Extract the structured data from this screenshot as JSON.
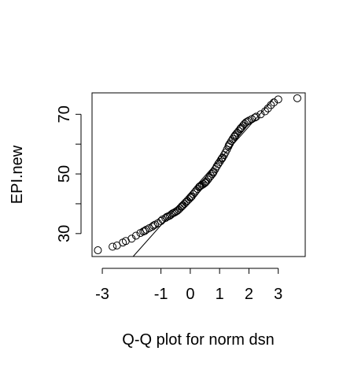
{
  "chart_data": {
    "type": "scatter",
    "title": "",
    "xlabel": "Q-Q plot for norm dsn",
    "ylabel": "EPI.new",
    "xlim": [
      -3.35,
      3.92
    ],
    "ylim": [
      22.3,
      77.2
    ],
    "xticks": [
      -3,
      -1,
      0,
      1,
      2,
      3
    ],
    "xtick_labels": [
      "-3",
      "-1",
      "0",
      "1",
      "2",
      "3"
    ],
    "yticks": [
      30,
      40,
      50,
      60,
      70
    ],
    "ytick_labels": [
      "30",
      "",
      "50",
      "",
      "70"
    ],
    "grid": false,
    "legend": "none",
    "reference_line": {
      "x": [
        -1.95,
        2.85
      ],
      "y": [
        22.3,
        75.3
      ]
    },
    "points": [
      [
        -3.15,
        24.4
      ],
      [
        -2.65,
        25.6
      ],
      [
        -2.5,
        26.0
      ],
      [
        -2.3,
        27.0
      ],
      [
        -2.2,
        27.5
      ],
      [
        -2.0,
        28.3
      ],
      [
        -1.85,
        29.3
      ],
      [
        -1.7,
        30.2
      ],
      [
        -1.6,
        30.7
      ],
      [
        -1.5,
        31.3
      ],
      [
        -1.4,
        31.8
      ],
      [
        -1.3,
        32.3
      ],
      [
        -1.2,
        33.0
      ],
      [
        -1.1,
        33.5
      ],
      [
        -1.0,
        34.2
      ],
      [
        -0.95,
        34.7
      ],
      [
        -0.85,
        35.2
      ],
      [
        -0.8,
        35.6
      ],
      [
        -0.7,
        36.0
      ],
      [
        -0.65,
        36.4
      ],
      [
        -0.6,
        36.8
      ],
      [
        -0.5,
        37.3
      ],
      [
        -0.45,
        37.6
      ],
      [
        -0.4,
        38.0
      ],
      [
        -0.35,
        38.5
      ],
      [
        -0.3,
        39.0
      ],
      [
        -0.25,
        39.5
      ],
      [
        -0.2,
        40.0
      ],
      [
        -0.15,
        40.5
      ],
      [
        -0.1,
        41.0
      ],
      [
        -0.05,
        41.5
      ],
      [
        0.0,
        42.0
      ],
      [
        0.05,
        42.5
      ],
      [
        0.1,
        43.2
      ],
      [
        0.15,
        43.8
      ],
      [
        0.2,
        44.4
      ],
      [
        0.25,
        45.0
      ],
      [
        0.3,
        45.6
      ],
      [
        0.35,
        46.0
      ],
      [
        0.4,
        46.3
      ],
      [
        0.45,
        46.6
      ],
      [
        0.5,
        47.0
      ],
      [
        0.55,
        47.5
      ],
      [
        0.6,
        48.1
      ],
      [
        0.65,
        48.8
      ],
      [
        0.7,
        49.4
      ],
      [
        0.75,
        50.0
      ],
      [
        0.8,
        50.8
      ],
      [
        0.85,
        51.6
      ],
      [
        0.9,
        52.5
      ],
      [
        0.95,
        53.3
      ],
      [
        1.0,
        54.0
      ],
      [
        1.05,
        54.8
      ],
      [
        1.1,
        55.5
      ],
      [
        1.15,
        56.3
      ],
      [
        1.2,
        57.2
      ],
      [
        1.25,
        58.2
      ],
      [
        1.3,
        59.2
      ],
      [
        1.35,
        60.2
      ],
      [
        1.4,
        61.0
      ],
      [
        1.45,
        61.8
      ],
      [
        1.5,
        62.5
      ],
      [
        1.55,
        63.2
      ],
      [
        1.6,
        63.8
      ],
      [
        1.65,
        64.4
      ],
      [
        1.7,
        65.0
      ],
      [
        1.75,
        65.6
      ],
      [
        1.8,
        66.2
      ],
      [
        1.85,
        66.8
      ],
      [
        1.9,
        67.3
      ],
      [
        2.0,
        67.9
      ],
      [
        2.1,
        68.4
      ],
      [
        2.25,
        69.2
      ],
      [
        2.4,
        70.0
      ],
      [
        2.55,
        71.0
      ],
      [
        2.65,
        72.0
      ],
      [
        2.75,
        73.1
      ],
      [
        2.85,
        74.0
      ],
      [
        3.0,
        75.0
      ],
      [
        3.65,
        75.4
      ],
      [
        -1.55,
        30.9
      ],
      [
        -1.25,
        32.7
      ],
      [
        -0.75,
        35.8
      ],
      [
        -0.55,
        37.0
      ],
      [
        -0.28,
        39.2
      ],
      [
        0.02,
        42.3
      ],
      [
        0.32,
        45.8
      ],
      [
        0.52,
        47.2
      ],
      [
        0.78,
        50.4
      ],
      [
        1.08,
        55.2
      ],
      [
        1.32,
        59.7
      ],
      [
        1.52,
        62.8
      ],
      [
        1.72,
        65.3
      ],
      [
        1.95,
        67.6
      ],
      [
        2.2,
        68.9
      ]
    ]
  }
}
